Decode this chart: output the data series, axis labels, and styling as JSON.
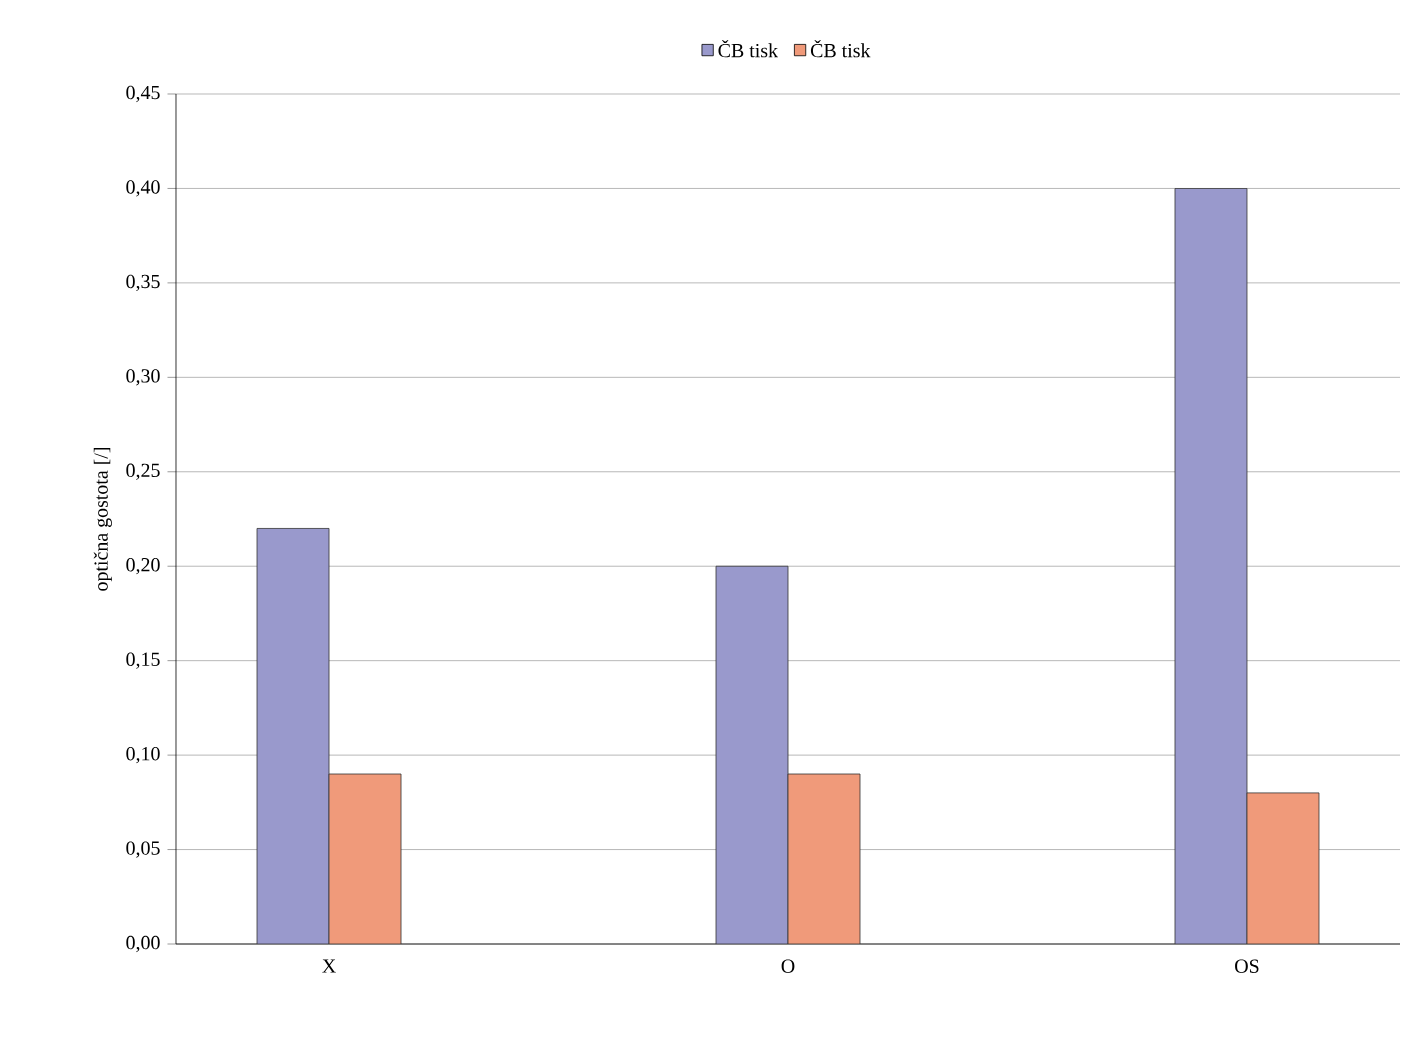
{
  "chart_data": {
    "type": "bar",
    "ylabel": "optična gostota [/]",
    "categories": [
      "X",
      "O",
      "OS"
    ],
    "series": [
      {
        "name": "ČB tisk",
        "color": "#9999cc",
        "values": [
          0.22,
          0.2,
          0.4
        ]
      },
      {
        "name": "ČB tisk",
        "color": "#f09a7a",
        "values": [
          0.09,
          0.09,
          0.08
        ]
      }
    ],
    "ylim": [
      0,
      0.45
    ],
    "yticks": [
      {
        "value": 0,
        "label": "0,00"
      },
      {
        "value": 0.05,
        "label": "0,05"
      },
      {
        "value": 0.1,
        "label": "0,10"
      },
      {
        "value": 0.15,
        "label": "0,15"
      },
      {
        "value": 0.2,
        "label": "0,20"
      },
      {
        "value": 0.25,
        "label": "0,25"
      },
      {
        "value": 0.3,
        "label": "0,30"
      },
      {
        "value": 0.35,
        "label": "0,35"
      },
      {
        "value": 0.4,
        "label": "0,40"
      },
      {
        "value": 0.45,
        "label": "0,45"
      }
    ],
    "grid": "y",
    "legend": "top"
  }
}
